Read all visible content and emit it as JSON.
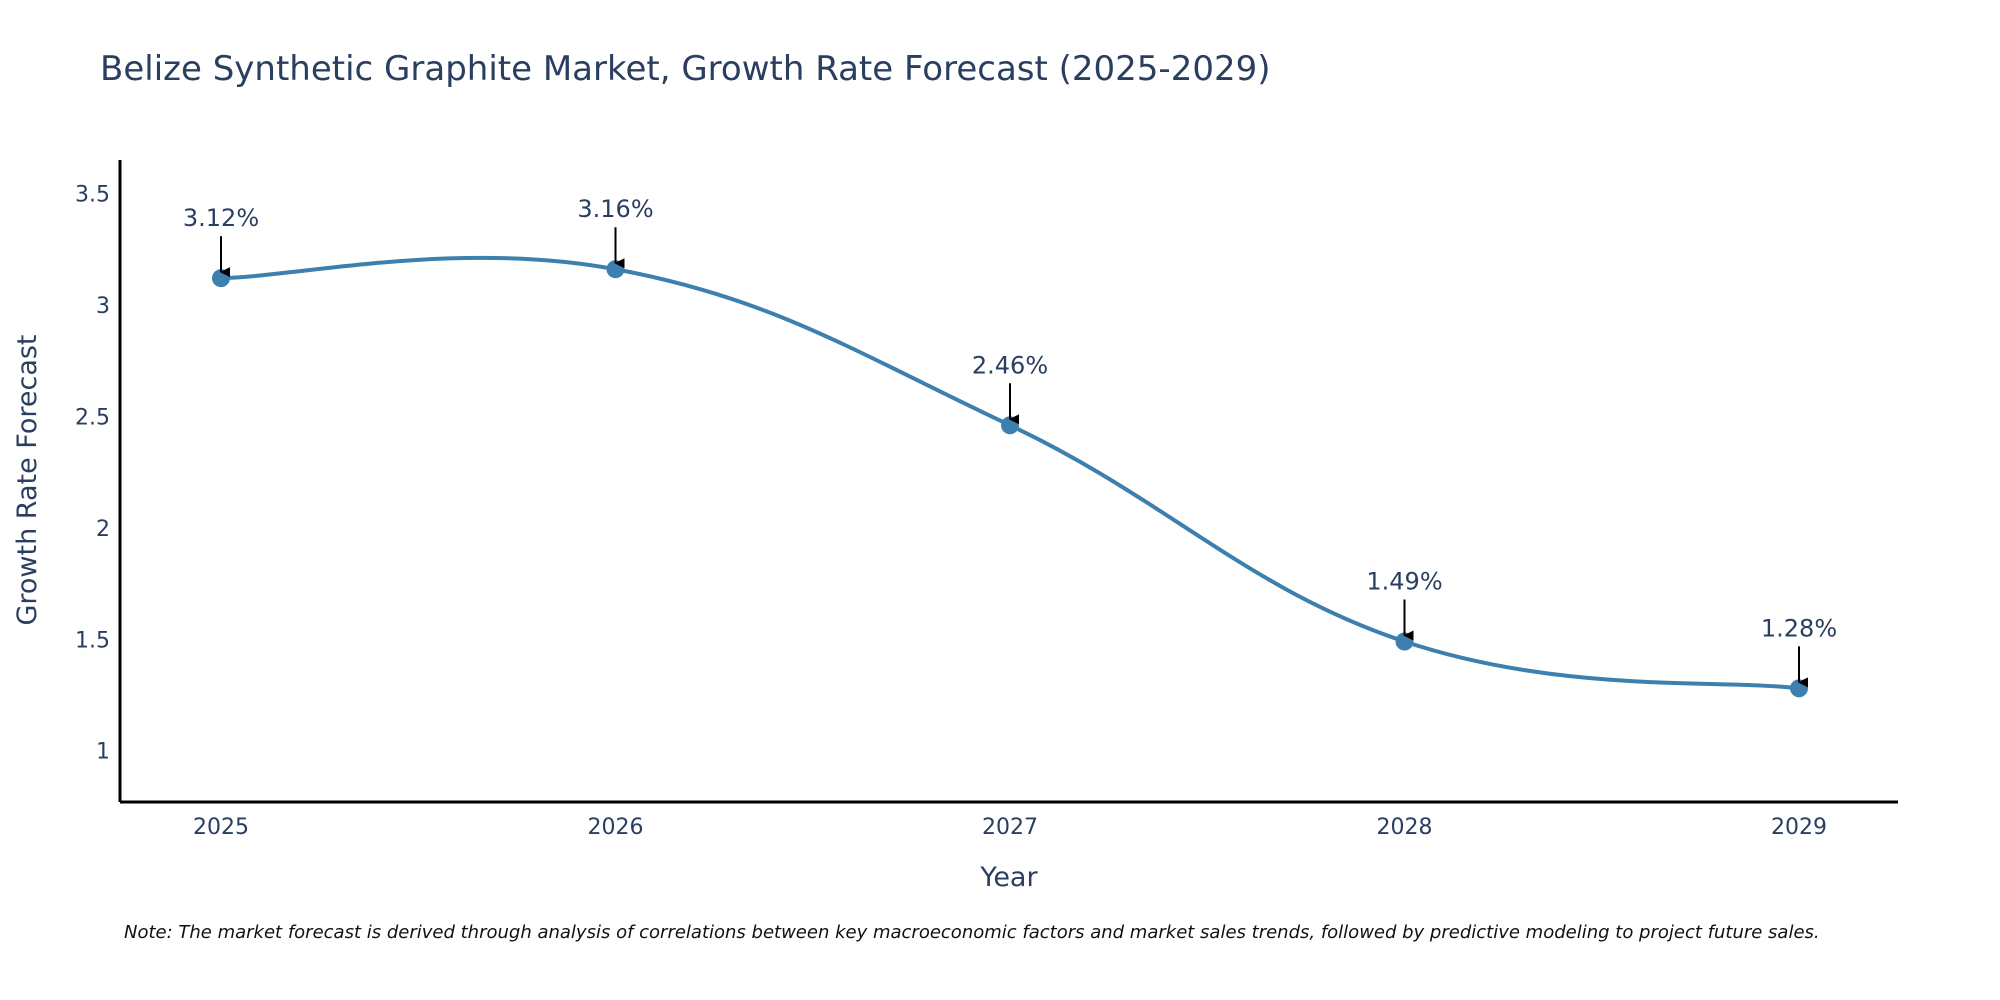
{
  "chart_data": {
    "type": "line",
    "title": "Belize Synthetic Graphite Market, Growth Rate Forecast (2025-2029)",
    "xlabel": "Year",
    "ylabel": "Growth Rate Forecast",
    "categories": [
      "2025",
      "2026",
      "2027",
      "2028",
      "2029"
    ],
    "series": [
      {
        "name": "Growth Rate Forecast",
        "values": [
          3.12,
          3.16,
          2.46,
          1.49,
          1.28
        ],
        "labels": [
          "3.12%",
          "3.16%",
          "2.46%",
          "1.49%",
          "1.28%"
        ],
        "color": "#3d7fae",
        "line_shape": "spline",
        "markers": true
      }
    ],
    "ylim": [
      0.77,
      3.65
    ],
    "yticks": [
      1,
      1.5,
      2,
      2.5,
      3,
      3.5
    ],
    "ytick_labels": [
      "1",
      "1.5",
      "2",
      "2.5",
      "3",
      "3.5"
    ],
    "grid": false,
    "annotation_arrow_color": "#000000",
    "note": "Note: The market forecast is derived through analysis of correlations between key macroeconomic factors and market sales trends, followed by predictive modeling to project future sales."
  }
}
